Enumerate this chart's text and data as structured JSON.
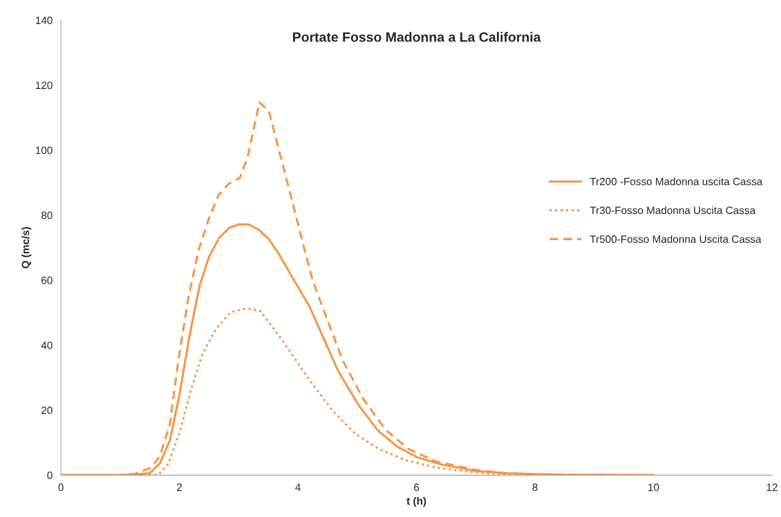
{
  "chart_data": {
    "type": "line",
    "title": "Portate Fosso Madonna a La California",
    "xlabel": "t (h)",
    "ylabel": "Q (mc/s)",
    "xlim": [
      0,
      12
    ],
    "xticks": [
      0,
      2,
      4,
      6,
      8,
      10,
      12
    ],
    "ylim": [
      0,
      140
    ],
    "yticks": [
      0,
      20,
      40,
      60,
      80,
      100,
      120,
      140
    ],
    "grid": false,
    "legend": "right",
    "marker": "none",
    "series": [
      {
        "name": "Tr200 -Fosso Madonna uscita Cassa",
        "color": "#f79646",
        "line_style": "solid",
        "x": [
          0,
          1,
          1.25,
          1.5,
          1.67,
          1.84,
          2.0,
          2.17,
          2.34,
          2.5,
          2.67,
          2.84,
          3.01,
          3.17,
          3.34,
          3.51,
          3.68,
          4.0,
          4.19,
          4.68,
          5.02,
          5.34,
          5.67,
          6.01,
          6.44,
          7.0,
          7.5,
          8.0,
          8.5,
          10
        ],
        "values": [
          0,
          0,
          0.2,
          0.6,
          3.6,
          10.8,
          24.7,
          42.8,
          58.3,
          67.2,
          73.0,
          76.1,
          77.2,
          77.1,
          75.5,
          72.6,
          68.0,
          57.9,
          52.1,
          32.0,
          21.6,
          13.9,
          8.8,
          5.5,
          3.2,
          1.3,
          0.6,
          0.3,
          0.1,
          0
        ]
      },
      {
        "name": "Tr30-Fosso Madonna Uscita Cassa",
        "color": "#f79646",
        "line_style": "dotted",
        "x": [
          0,
          1.4,
          1.65,
          1.81,
          2.01,
          2.2,
          2.39,
          2.62,
          2.87,
          3.13,
          3.36,
          3.62,
          3.89,
          4.21,
          4.59,
          4.97,
          5.36,
          5.82,
          6.33,
          7.0,
          7.5,
          8.0,
          10
        ],
        "values": [
          0,
          0,
          0.2,
          3.4,
          13.5,
          26.6,
          37.4,
          45.1,
          50.2,
          51.3,
          50.6,
          44.4,
          37.4,
          28.9,
          19.7,
          12.7,
          8.1,
          4.6,
          2.3,
          0.8,
          0.3,
          0.1,
          0
        ]
      },
      {
        "name": "Tr500-Fosso Madonna Uscita Cassa",
        "color": "#f79646",
        "line_style": "dashed",
        "x": [
          0,
          1,
          1.25,
          1.52,
          1.67,
          1.84,
          1.98,
          2.15,
          2.32,
          2.5,
          2.66,
          2.83,
          3.02,
          3.15,
          3.35,
          3.51,
          3.7,
          3.89,
          4.06,
          4.25,
          4.47,
          4.76,
          5.1,
          5.48,
          5.86,
          6.33,
          7.0,
          7.5,
          8.0,
          8.5,
          10
        ],
        "values": [
          0,
          0,
          0.4,
          2.3,
          5.8,
          15.8,
          35.1,
          54.4,
          69.1,
          79.1,
          86.1,
          89.6,
          91.5,
          97.7,
          114.7,
          112.0,
          98.5,
          85.3,
          73.0,
          59.8,
          49.0,
          35.1,
          23.5,
          13.9,
          8.1,
          4.2,
          1.6,
          0.6,
          0.3,
          0.1,
          0
        ]
      }
    ]
  }
}
